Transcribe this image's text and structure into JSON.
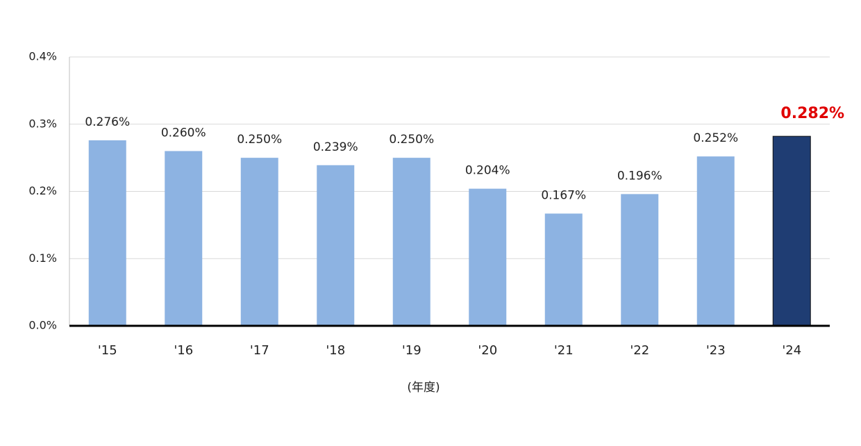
{
  "chart_data": {
    "type": "bar",
    "x_label": "(年度)",
    "categories": [
      "'15",
      "'16",
      "'17",
      "'18",
      "'19",
      "'20",
      "'21",
      "'22",
      "'23",
      "'24"
    ],
    "values": [
      0.276,
      0.26,
      0.25,
      0.239,
      0.25,
      0.204,
      0.167,
      0.196,
      0.252,
      0.282
    ],
    "value_labels": [
      "0.276%",
      "0.260%",
      "0.250%",
      "0.239%",
      "0.250%",
      "0.204%",
      "0.167%",
      "0.196%",
      "0.252%",
      "0.282%"
    ],
    "colors": [
      "#8db3e2",
      "#8db3e2",
      "#8db3e2",
      "#8db3e2",
      "#8db3e2",
      "#8db3e2",
      "#8db3e2",
      "#8db3e2",
      "#8db3e2",
      "#1f3d73"
    ],
    "label_colors": [
      "#222222",
      "#222222",
      "#222222",
      "#222222",
      "#222222",
      "#222222",
      "#222222",
      "#222222",
      "#222222",
      "#e00000"
    ],
    "ylim": [
      0,
      0.4
    ],
    "yticks": [
      {
        "value": 0,
        "label": "0.0%"
      },
      {
        "value": 0.1,
        "label": "0.1%"
      },
      {
        "value": 0.2,
        "label": "0.2%"
      },
      {
        "value": 0.3,
        "label": "0.3%"
      },
      {
        "value": 0.4,
        "label": "0.4%"
      }
    ],
    "grid": true
  }
}
